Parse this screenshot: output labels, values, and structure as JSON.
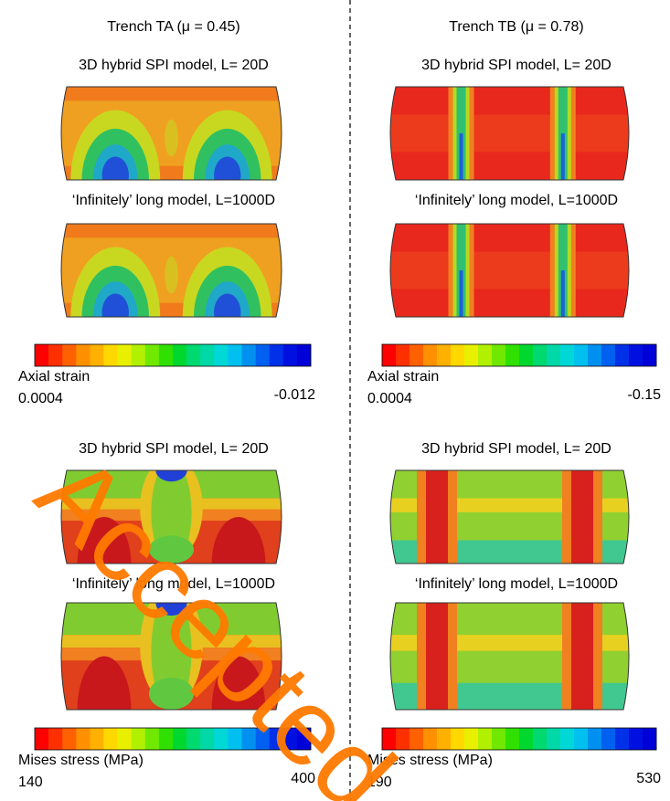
{
  "columns": [
    {
      "title": "Trench TA (μ = 0.45)",
      "strain": {
        "model_1": "3D hybrid SPI model, L= 20D",
        "model_2": "‘Infinitely’ long model, L=1000D",
        "colorbar_label": "Axial strain",
        "min": "0.0004",
        "max": "-0.012"
      },
      "stress": {
        "model_1": "3D hybrid SPI model, L= 20D",
        "model_2": "‘Infinitely’ long model, L=1000D",
        "colorbar_label": "Mises stress (MPa)",
        "min": "140",
        "max": "400"
      }
    },
    {
      "title": "Trench TB (μ = 0.78)",
      "strain": {
        "model_1": "3D hybrid SPI model, L= 20D",
        "model_2": "‘Infinitely’ long model, L=1000D",
        "colorbar_label": "Axial strain",
        "min": "0.0004",
        "max": "-0.15"
      },
      "stress": {
        "model_1": "3D hybrid SPI model, L= 20D",
        "model_2": "‘Infinitely’ long model, L=1000D",
        "colorbar_label": "Mises stress (MPa)",
        "min": "190",
        "max": "530"
      }
    }
  ],
  "watermark": "Accepted"
}
